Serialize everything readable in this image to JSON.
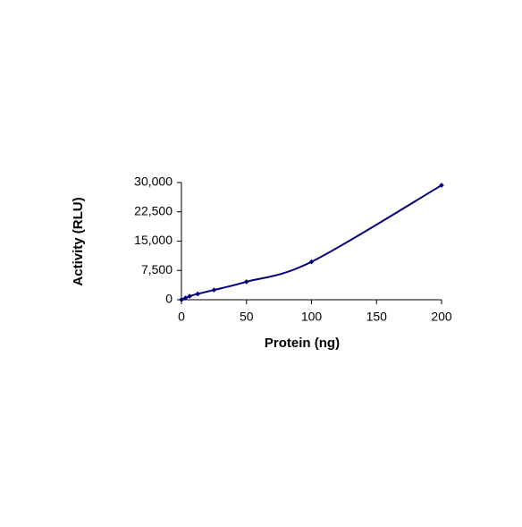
{
  "chart_data": {
    "type": "line",
    "x_label": "Protein (ng)",
    "y_label": "Activity (RLU)",
    "series": [
      {
        "name": "Activity",
        "color": "#000080",
        "x": [
          0,
          3.125,
          6.25,
          12.5,
          25,
          50,
          100,
          200
        ],
        "values": [
          0,
          450,
          900,
          1500,
          2500,
          4600,
          9700,
          29300
        ]
      }
    ],
    "xlim": [
      0,
      200
    ],
    "xticks": [
      0,
      50,
      100,
      150,
      200
    ],
    "ylim": [
      0,
      30000
    ],
    "yticks": [
      {
        "value": 0,
        "label": "0"
      },
      {
        "value": 7500,
        "label": "7,500"
      },
      {
        "value": 15000,
        "label": "15,000"
      },
      {
        "value": 22500,
        "label": "22,500"
      },
      {
        "value": 30000,
        "label": "30,000"
      }
    ],
    "grid": false
  }
}
